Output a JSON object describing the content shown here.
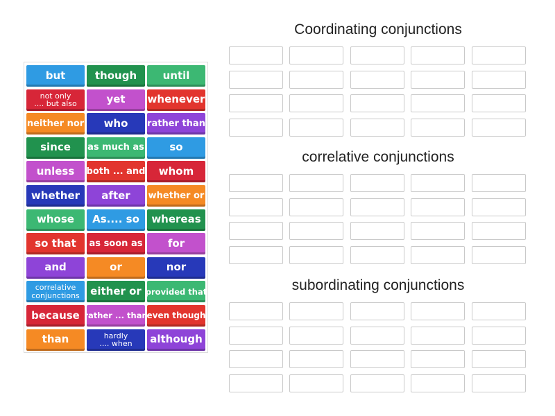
{
  "tiles": [
    {
      "text": "but",
      "color": "#2f9be3",
      "size": "sz-l"
    },
    {
      "text": "though",
      "color": "#21924e",
      "size": "sz-l"
    },
    {
      "text": "until",
      "color": "#3cb873",
      "size": "sz-l"
    },
    {
      "text": "not only\n.... but also",
      "color": "#d72638",
      "size": "sz-2"
    },
    {
      "text": "yet",
      "color": "#c251cc",
      "size": "sz-l"
    },
    {
      "text": "whenever",
      "color": "#e2352e",
      "size": "sz-l"
    },
    {
      "text": "neither nor",
      "color": "#f58a24",
      "size": "sz-m"
    },
    {
      "text": "who",
      "color": "#2739b9",
      "size": "sz-l"
    },
    {
      "text": "rather than",
      "color": "#8e44d8",
      "size": "sz-m"
    },
    {
      "text": "since",
      "color": "#21924e",
      "size": "sz-l"
    },
    {
      "text": "as much as",
      "color": "#3cb873",
      "size": "sz-m"
    },
    {
      "text": "so",
      "color": "#2f9be3",
      "size": "sz-l"
    },
    {
      "text": "unless",
      "color": "#c251cc",
      "size": "sz-l"
    },
    {
      "text": "both ... and",
      "color": "#e2352e",
      "size": "sz-m"
    },
    {
      "text": "whom",
      "color": "#d72638",
      "size": "sz-l"
    },
    {
      "text": "whether",
      "color": "#2739b9",
      "size": "sz-l"
    },
    {
      "text": "after",
      "color": "#8e44d8",
      "size": "sz-l"
    },
    {
      "text": "whether or",
      "color": "#f58a24",
      "size": "sz-m"
    },
    {
      "text": "whose",
      "color": "#3cb873",
      "size": "sz-l"
    },
    {
      "text": "As.... so",
      "color": "#2f9be3",
      "size": "sz-l"
    },
    {
      "text": "whereas",
      "color": "#21924e",
      "size": "sz-l"
    },
    {
      "text": "so that",
      "color": "#e2352e",
      "size": "sz-l"
    },
    {
      "text": "as soon as",
      "color": "#d72638",
      "size": "sz-m"
    },
    {
      "text": "for",
      "color": "#c251cc",
      "size": "sz-l"
    },
    {
      "text": "and",
      "color": "#8e44d8",
      "size": "sz-l"
    },
    {
      "text": "or",
      "color": "#f58a24",
      "size": "sz-l"
    },
    {
      "text": "nor",
      "color": "#2739b9",
      "size": "sz-l"
    },
    {
      "text": "correlative\nconjunctions",
      "color": "#2f9be3",
      "size": "sz-2"
    },
    {
      "text": "either or",
      "color": "#21924e",
      "size": "sz-l"
    },
    {
      "text": "provided that",
      "color": "#3cb873",
      "size": "sz-xs"
    },
    {
      "text": "because",
      "color": "#d72638",
      "size": "sz-l"
    },
    {
      "text": "rather ... than",
      "color": "#c251cc",
      "size": "sz-xs"
    },
    {
      "text": "even though",
      "color": "#e2352e",
      "size": "sz-s"
    },
    {
      "text": "than",
      "color": "#f58a24",
      "size": "sz-l"
    },
    {
      "text": "hardly\n.... when",
      "color": "#2739b9",
      "size": "sz-2"
    },
    {
      "text": "although",
      "color": "#8e44d8",
      "size": "sz-l"
    }
  ],
  "groups": [
    {
      "title": "Coordinating conjunctions"
    },
    {
      "title": "correlative conjunctions"
    },
    {
      "title": "subordinating conjunctions"
    }
  ]
}
